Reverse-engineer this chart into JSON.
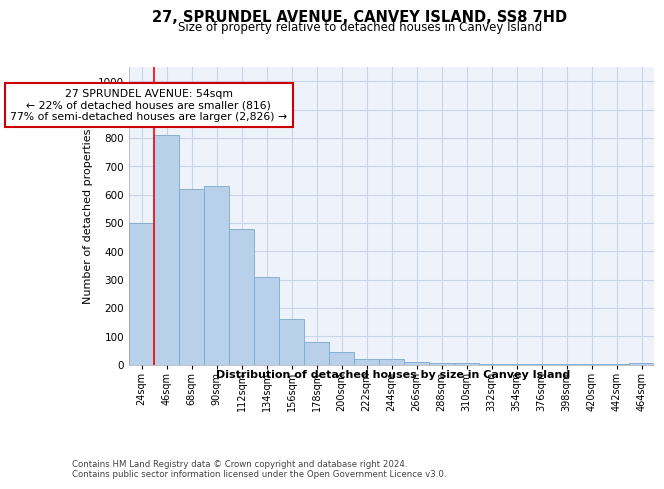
{
  "title": "27, SPRUNDEL AVENUE, CANVEY ISLAND, SS8 7HD",
  "subtitle": "Size of property relative to detached houses in Canvey Island",
  "xlabel": "Distribution of detached houses by size in Canvey Island",
  "ylabel": "Number of detached properties",
  "bar_color": "#b8d0ea",
  "bar_edge_color": "#7aaad0",
  "categories": [
    "24sqm",
    "46sqm",
    "68sqm",
    "90sqm",
    "112sqm",
    "134sqm",
    "156sqm",
    "178sqm",
    "200sqm",
    "222sqm",
    "244sqm",
    "266sqm",
    "288sqm",
    "310sqm",
    "332sqm",
    "354sqm",
    "376sqm",
    "398sqm",
    "420sqm",
    "442sqm",
    "464sqm"
  ],
  "values": [
    500,
    810,
    620,
    630,
    480,
    310,
    160,
    80,
    45,
    20,
    20,
    10,
    5,
    5,
    3,
    3,
    2,
    2,
    2,
    2,
    5
  ],
  "ylim": [
    0,
    1050
  ],
  "yticks": [
    0,
    100,
    200,
    300,
    400,
    500,
    600,
    700,
    800,
    900,
    1000
  ],
  "vline_color": "red",
  "annotation_text": "27 SPRUNDEL AVENUE: 54sqm\n← 22% of detached houses are smaller (816)\n77% of semi-detached houses are larger (2,826) →",
  "annotation_box_color": "white",
  "annotation_box_edge_color": "#cc0000",
  "background_color": "#eef2fa",
  "grid_color": "#c8d4e8",
  "footnote": "Contains HM Land Registry data © Crown copyright and database right 2024.\nContains public sector information licensed under the Open Government Licence v3.0."
}
